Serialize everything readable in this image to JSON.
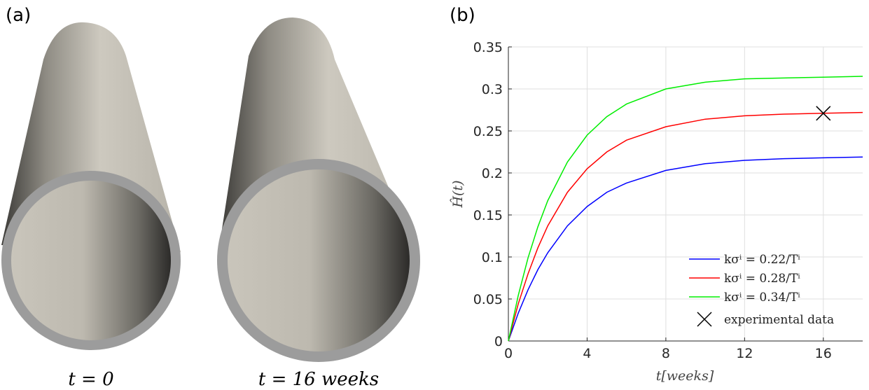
{
  "figure": {
    "panel_a_label": "(a)",
    "panel_a_captions": [
      "t = 0",
      "t = 16 weeks"
    ]
  },
  "chart_data": {
    "type": "line",
    "panel_label": "(b)",
    "xlabel": "t[weeks]",
    "ylabel": "Ĥ(t)",
    "x": [
      0,
      0.5,
      1,
      1.5,
      2,
      3,
      4,
      5,
      6,
      8,
      10,
      12,
      14,
      16,
      18
    ],
    "series": [
      {
        "name": "kσⁱ = 0.22/Tⁱ",
        "color": "#0000ff",
        "values": [
          0,
          0.033,
          0.061,
          0.085,
          0.105,
          0.137,
          0.16,
          0.177,
          0.188,
          0.203,
          0.211,
          0.215,
          0.217,
          0.218,
          0.219
        ]
      },
      {
        "name": "kσⁱ = 0.28/Tⁱ",
        "color": "#ff0000",
        "values": [
          0,
          0.044,
          0.08,
          0.111,
          0.137,
          0.177,
          0.205,
          0.225,
          0.239,
          0.255,
          0.264,
          0.268,
          0.27,
          0.271,
          0.272
        ]
      },
      {
        "name": "kσⁱ = 0.34/Tⁱ",
        "color": "#00ee00",
        "values": [
          0,
          0.054,
          0.099,
          0.136,
          0.167,
          0.213,
          0.245,
          0.267,
          0.282,
          0.3,
          0.308,
          0.312,
          0.313,
          0.314,
          0.315
        ]
      },
      {
        "name": "experimental data",
        "color": "#000000",
        "marker": "x",
        "x": [
          16
        ],
        "values": [
          0.271
        ]
      }
    ],
    "xlim": [
      0,
      18
    ],
    "xticks": [
      0,
      4,
      8,
      12,
      16
    ],
    "ylim": [
      0,
      0.35
    ],
    "yticks": [
      0,
      0.05,
      0.1,
      0.15,
      0.2,
      0.25,
      0.3,
      0.35
    ],
    "grid": true,
    "legend": "lower right"
  }
}
